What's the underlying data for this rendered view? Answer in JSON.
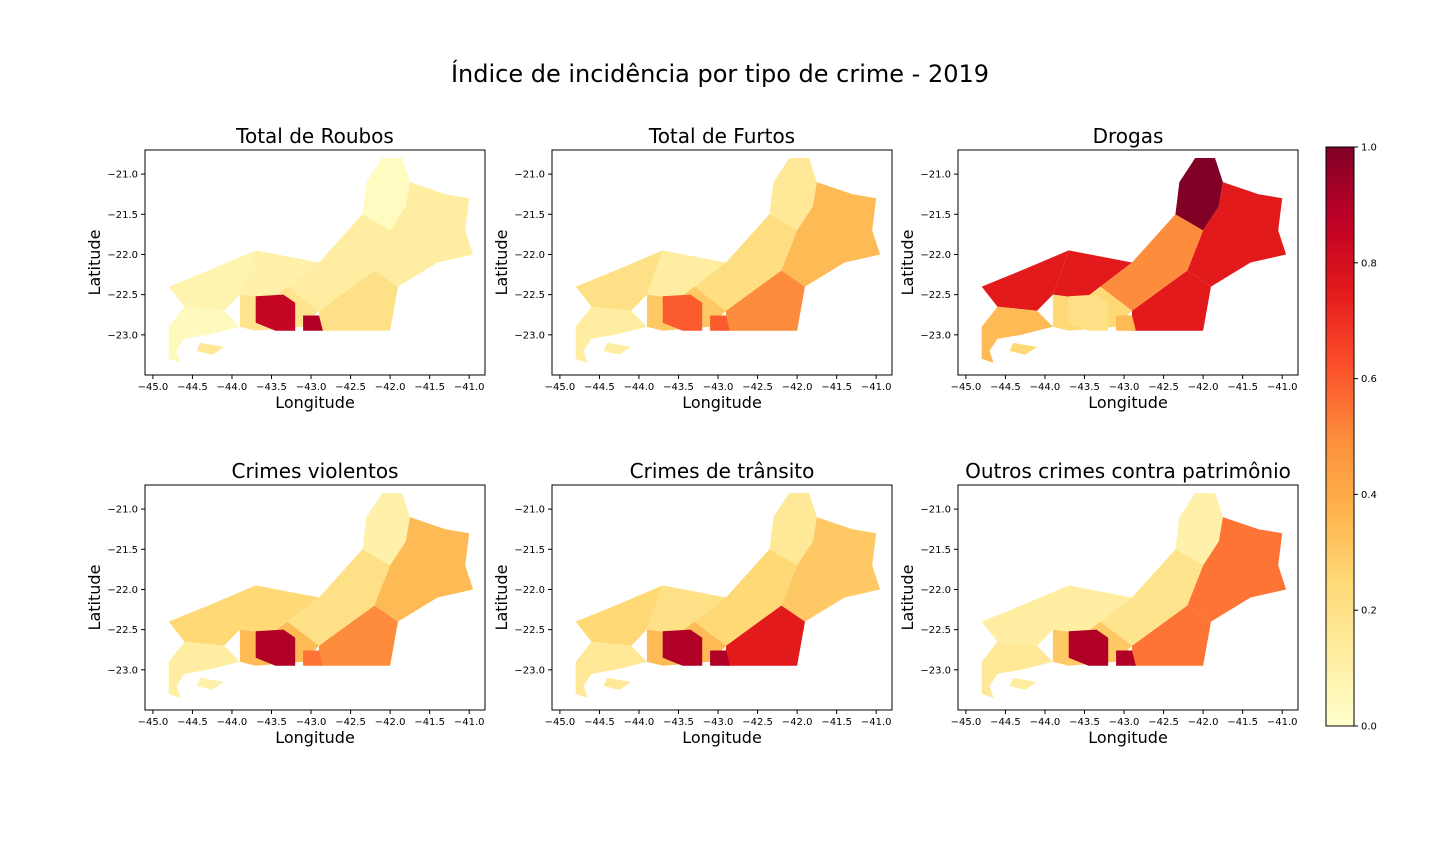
{
  "figure": {
    "title": "Índice de incidência por tipo de crime - 2019"
  },
  "colors": {
    "colormap": "YlOrRd",
    "stops": [
      "#ffffcc",
      "#ffeda0",
      "#fed976",
      "#feb24c",
      "#fd8d3c",
      "#fc4e2a",
      "#e31a1c",
      "#bd0026",
      "#800026"
    ],
    "axes_edge": "#000000"
  },
  "colorbar": {
    "range": [
      0.0,
      1.0
    ],
    "ticks": [
      "0.0",
      "0.2",
      "0.4",
      "0.6",
      "0.8",
      "1.0"
    ]
  },
  "axes_defaults": {
    "xlabel": "Longitude",
    "ylabel": "Latitude",
    "xlim": [
      -45.1,
      -40.8
    ],
    "ylim": [
      -23.5,
      -20.7
    ],
    "xticks": [
      "−45.0",
      "−44.5",
      "−44.0",
      "−43.5",
      "−43.0",
      "−42.5",
      "−42.0",
      "−41.5",
      "−41.0"
    ],
    "yticks": [
      "−21.0",
      "−21.5",
      "−22.0",
      "−22.5",
      "−23.0"
    ]
  },
  "chart_data": [
    {
      "type": "choropleth",
      "title": "Total de Roubos",
      "xlabel": "Longitude",
      "ylabel": "Latitude",
      "region_values": {
        "north": 0.03,
        "norte_fluminense": 0.12,
        "baixadas": 0.2,
        "serrana": 0.12,
        "centro_sul": 0.1,
        "medio_paraiba": 0.08,
        "costa_verde": 0.04,
        "metro_west": 0.18,
        "capital": 0.85,
        "niteroi": 0.9,
        "ilha": 0.15
      }
    },
    {
      "type": "choropleth",
      "title": "Total de Furtos",
      "xlabel": "Longitude",
      "ylabel": "Latitude",
      "region_values": {
        "north": 0.15,
        "norte_fluminense": 0.35,
        "baixadas": 0.5,
        "serrana": 0.22,
        "centro_sul": 0.12,
        "medio_paraiba": 0.2,
        "costa_verde": 0.12,
        "metro_west": 0.3,
        "capital": 0.6,
        "niteroi": 0.6,
        "ilha": 0.12
      }
    },
    {
      "type": "choropleth",
      "title": "Drogas",
      "xlabel": "Longitude",
      "ylabel": "Latitude",
      "region_values": {
        "north": 1.0,
        "norte_fluminense": 0.75,
        "baixadas": 0.75,
        "serrana": 0.5,
        "centro_sul": 0.75,
        "medio_paraiba": 0.75,
        "costa_verde": 0.35,
        "metro_west": 0.25,
        "capital": 0.2,
        "niteroi": 0.35,
        "ilha": 0.25
      }
    },
    {
      "type": "choropleth",
      "title": "Crimes violentos",
      "xlabel": "Longitude",
      "ylabel": "Latitude",
      "region_values": {
        "north": 0.1,
        "norte_fluminense": 0.35,
        "baixadas": 0.5,
        "serrana": 0.2,
        "centro_sul": 0.25,
        "medio_paraiba": 0.25,
        "costa_verde": 0.12,
        "metro_west": 0.35,
        "capital": 0.9,
        "niteroi": 0.55,
        "ilha": 0.1
      }
    },
    {
      "type": "choropleth",
      "title": "Crimes de trânsito",
      "xlabel": "Longitude",
      "ylabel": "Latitude",
      "region_values": {
        "north": 0.15,
        "norte_fluminense": 0.3,
        "baixadas": 0.75,
        "serrana": 0.25,
        "centro_sul": 0.2,
        "medio_paraiba": 0.25,
        "costa_verde": 0.15,
        "metro_west": 0.35,
        "capital": 0.9,
        "niteroi": 0.9,
        "ilha": 0.15
      }
    },
    {
      "type": "choropleth",
      "title": "Outros crimes contra patrimônio",
      "xlabel": "Longitude",
      "ylabel": "Latitude",
      "region_values": {
        "north": 0.1,
        "norte_fluminense": 0.55,
        "baixadas": 0.55,
        "serrana": 0.18,
        "centro_sul": 0.12,
        "medio_paraiba": 0.12,
        "costa_verde": 0.15,
        "metro_west": 0.3,
        "capital": 0.9,
        "niteroi": 0.9,
        "ilha": 0.12
      }
    }
  ]
}
